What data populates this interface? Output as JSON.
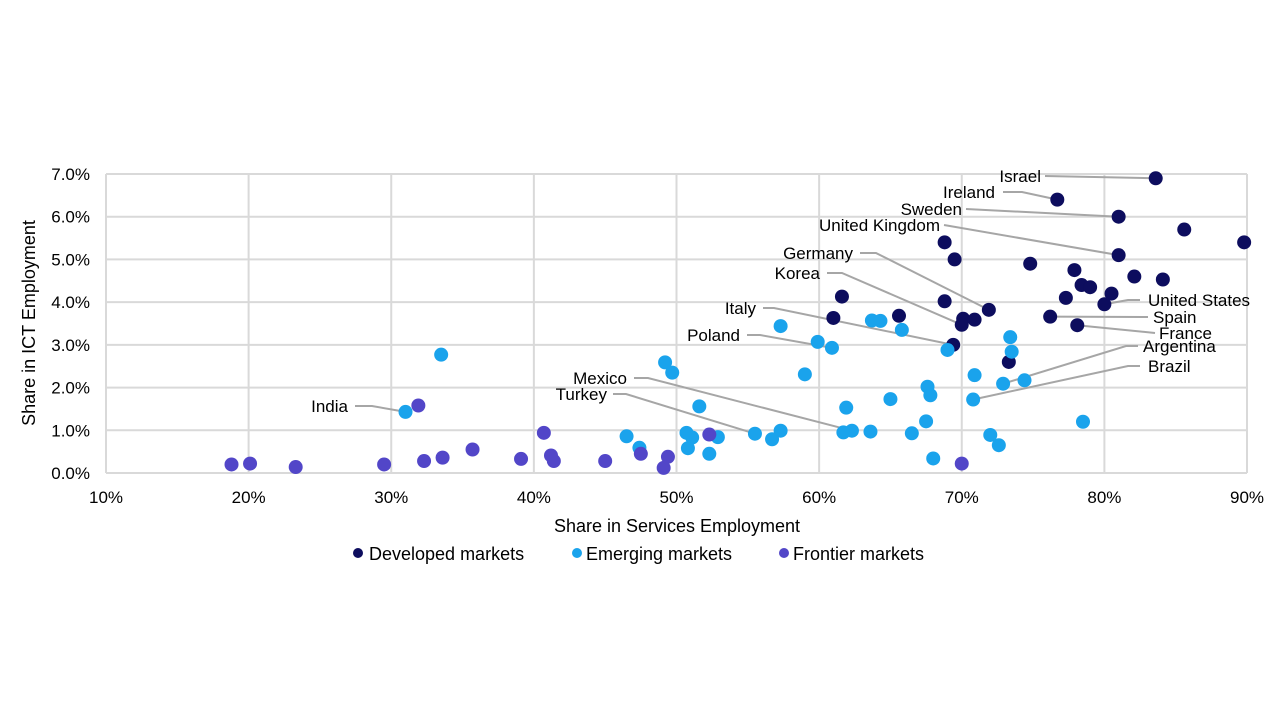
{
  "chart_data": {
    "type": "scatter",
    "xlabel": "Share in Services Employment",
    "ylabel": "Share in ICT Employment",
    "xlim": [
      0.1,
      0.9
    ],
    "ylim": [
      0.0,
      0.07
    ],
    "x_ticks": [
      0.1,
      0.2,
      0.3,
      0.4,
      0.5,
      0.6,
      0.7,
      0.8,
      0.9
    ],
    "x_tick_labels": [
      "10%",
      "20%",
      "30%",
      "40%",
      "50%",
      "60%",
      "70%",
      "80%",
      "90%"
    ],
    "y_ticks": [
      0.0,
      0.01,
      0.02,
      0.03,
      0.04,
      0.05,
      0.06,
      0.07
    ],
    "y_tick_labels": [
      "0.0%",
      "1.0%",
      "2.0%",
      "3.0%",
      "4.0%",
      "5.0%",
      "6.0%",
      "7.0%"
    ],
    "grid": true,
    "legend_position": "bottom",
    "series": [
      {
        "name": "Developed markets",
        "color": "#0d0d5e",
        "points": [
          [
            0.836,
            0.069
          ],
          [
            0.767,
            0.064
          ],
          [
            0.81,
            0.06
          ],
          [
            0.81,
            0.051
          ],
          [
            0.856,
            0.057
          ],
          [
            0.898,
            0.054
          ],
          [
            0.688,
            0.054
          ],
          [
            0.695,
            0.05
          ],
          [
            0.748,
            0.049
          ],
          [
            0.779,
            0.0475
          ],
          [
            0.821,
            0.046
          ],
          [
            0.841,
            0.0453
          ],
          [
            0.784,
            0.044
          ],
          [
            0.79,
            0.0435
          ],
          [
            0.805,
            0.042
          ],
          [
            0.773,
            0.041
          ],
          [
            0.8,
            0.0395
          ],
          [
            0.616,
            0.0413
          ],
          [
            0.688,
            0.0402
          ],
          [
            0.719,
            0.0382
          ],
          [
            0.656,
            0.0368
          ],
          [
            0.61,
            0.0363
          ],
          [
            0.701,
            0.0361
          ],
          [
            0.709,
            0.0359
          ],
          [
            0.7,
            0.0347
          ],
          [
            0.762,
            0.0366
          ],
          [
            0.781,
            0.0346
          ],
          [
            0.694,
            0.03
          ],
          [
            0.733,
            0.026
          ]
        ]
      },
      {
        "name": "Emerging markets",
        "color": "#1aa3ec",
        "points": [
          [
            0.335,
            0.0277
          ],
          [
            0.31,
            0.0143
          ],
          [
            0.573,
            0.0344
          ],
          [
            0.637,
            0.0357
          ],
          [
            0.643,
            0.0356
          ],
          [
            0.658,
            0.0335
          ],
          [
            0.599,
            0.0307
          ],
          [
            0.609,
            0.0293
          ],
          [
            0.69,
            0.0288
          ],
          [
            0.734,
            0.0318
          ],
          [
            0.735,
            0.0284
          ],
          [
            0.492,
            0.0259
          ],
          [
            0.497,
            0.0235
          ],
          [
            0.59,
            0.0231
          ],
          [
            0.709,
            0.0229
          ],
          [
            0.676,
            0.0202
          ],
          [
            0.729,
            0.0209
          ],
          [
            0.744,
            0.0217
          ],
          [
            0.678,
            0.0182
          ],
          [
            0.65,
            0.0173
          ],
          [
            0.708,
            0.0172
          ],
          [
            0.516,
            0.0156
          ],
          [
            0.619,
            0.0153
          ],
          [
            0.785,
            0.012
          ],
          [
            0.675,
            0.0121
          ],
          [
            0.573,
            0.0099
          ],
          [
            0.555,
            0.0092
          ],
          [
            0.623,
            0.0099
          ],
          [
            0.617,
            0.0095
          ],
          [
            0.636,
            0.0097
          ],
          [
            0.665,
            0.0093
          ],
          [
            0.72,
            0.0089
          ],
          [
            0.507,
            0.0094
          ],
          [
            0.511,
            0.0083
          ],
          [
            0.529,
            0.0084
          ],
          [
            0.465,
            0.0086
          ],
          [
            0.567,
            0.0079
          ],
          [
            0.726,
            0.0065
          ],
          [
            0.474,
            0.0059
          ],
          [
            0.508,
            0.0058
          ],
          [
            0.523,
            0.0045
          ],
          [
            0.68,
            0.0034
          ]
        ]
      },
      {
        "name": "Frontier markets",
        "color": "#5246c8",
        "points": [
          [
            0.188,
            0.002
          ],
          [
            0.201,
            0.0022
          ],
          [
            0.233,
            0.0014
          ],
          [
            0.295,
            0.002
          ],
          [
            0.319,
            0.0158
          ],
          [
            0.323,
            0.0028
          ],
          [
            0.336,
            0.0036
          ],
          [
            0.357,
            0.0055
          ],
          [
            0.391,
            0.0033
          ],
          [
            0.407,
            0.0094
          ],
          [
            0.412,
            0.0041
          ],
          [
            0.414,
            0.0028
          ],
          [
            0.45,
            0.0028
          ],
          [
            0.475,
            0.0045
          ],
          [
            0.491,
            0.0012
          ],
          [
            0.494,
            0.0038
          ],
          [
            0.523,
            0.009
          ],
          [
            0.7,
            0.0022
          ]
        ]
      }
    ],
    "annotations": [
      {
        "text": "Israel",
        "point": [
          0.836,
          0.069
        ]
      },
      {
        "text": "Ireland",
        "point": [
          0.767,
          0.064
        ]
      },
      {
        "text": "Sweden",
        "point": [
          0.81,
          0.06
        ]
      },
      {
        "text": "United Kingdom",
        "point": [
          0.81,
          0.051
        ]
      },
      {
        "text": "Germany",
        "point": [
          0.719,
          0.0382
        ]
      },
      {
        "text": "Korea",
        "point": [
          0.7,
          0.0347
        ]
      },
      {
        "text": "Italy",
        "point": [
          0.694,
          0.03
        ]
      },
      {
        "text": "Poland",
        "point": [
          0.609,
          0.0293
        ]
      },
      {
        "text": "Mexico",
        "point": [
          0.623,
          0.0099
        ]
      },
      {
        "text": "Turkey",
        "point": [
          0.555,
          0.0092
        ]
      },
      {
        "text": "India",
        "point": [
          0.31,
          0.0143
        ]
      },
      {
        "text": "United States",
        "point": [
          0.8,
          0.0395
        ]
      },
      {
        "text": "Spain",
        "point": [
          0.762,
          0.0366
        ]
      },
      {
        "text": "France",
        "point": [
          0.781,
          0.0346
        ]
      },
      {
        "text": "Argentina",
        "point": [
          0.729,
          0.0209
        ]
      },
      {
        "text": "Brazil",
        "point": [
          0.708,
          0.0172
        ]
      }
    ]
  }
}
